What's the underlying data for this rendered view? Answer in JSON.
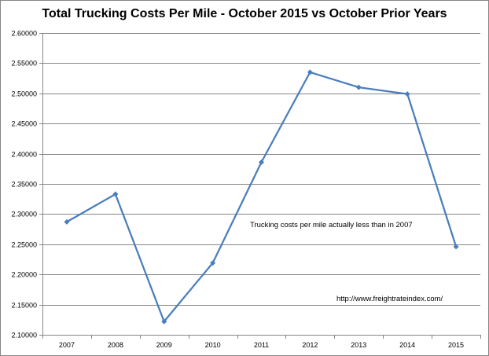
{
  "chart_data": {
    "type": "line",
    "title": "Total Trucking Costs Per Mile - October 2015 vs October Prior Years",
    "xlabel": "",
    "ylabel": "",
    "categories": [
      "2007",
      "2008",
      "2009",
      "2010",
      "2011",
      "2012",
      "2013",
      "2014",
      "2015"
    ],
    "series": [
      {
        "values": [
          2.287,
          2.333,
          2.122,
          2.219,
          2.386,
          2.535,
          2.51,
          2.499,
          2.246
        ]
      }
    ],
    "y_ticks": [
      "2.10000",
      "2.15000",
      "2.20000",
      "2.25000",
      "2.30000",
      "2.35000",
      "2.40000",
      "2.45000",
      "2.50000",
      "2.55000",
      "2.60000"
    ],
    "ylim": [
      2.1,
      2.6
    ],
    "grid": "horizontal",
    "legend": "none",
    "annotations": [
      "Trucking costs per mile actually less than in 2007",
      "http://www.freightrateindex.com/"
    ],
    "colors": {
      "series": "#4a7ebb",
      "grid": "#868686"
    }
  }
}
